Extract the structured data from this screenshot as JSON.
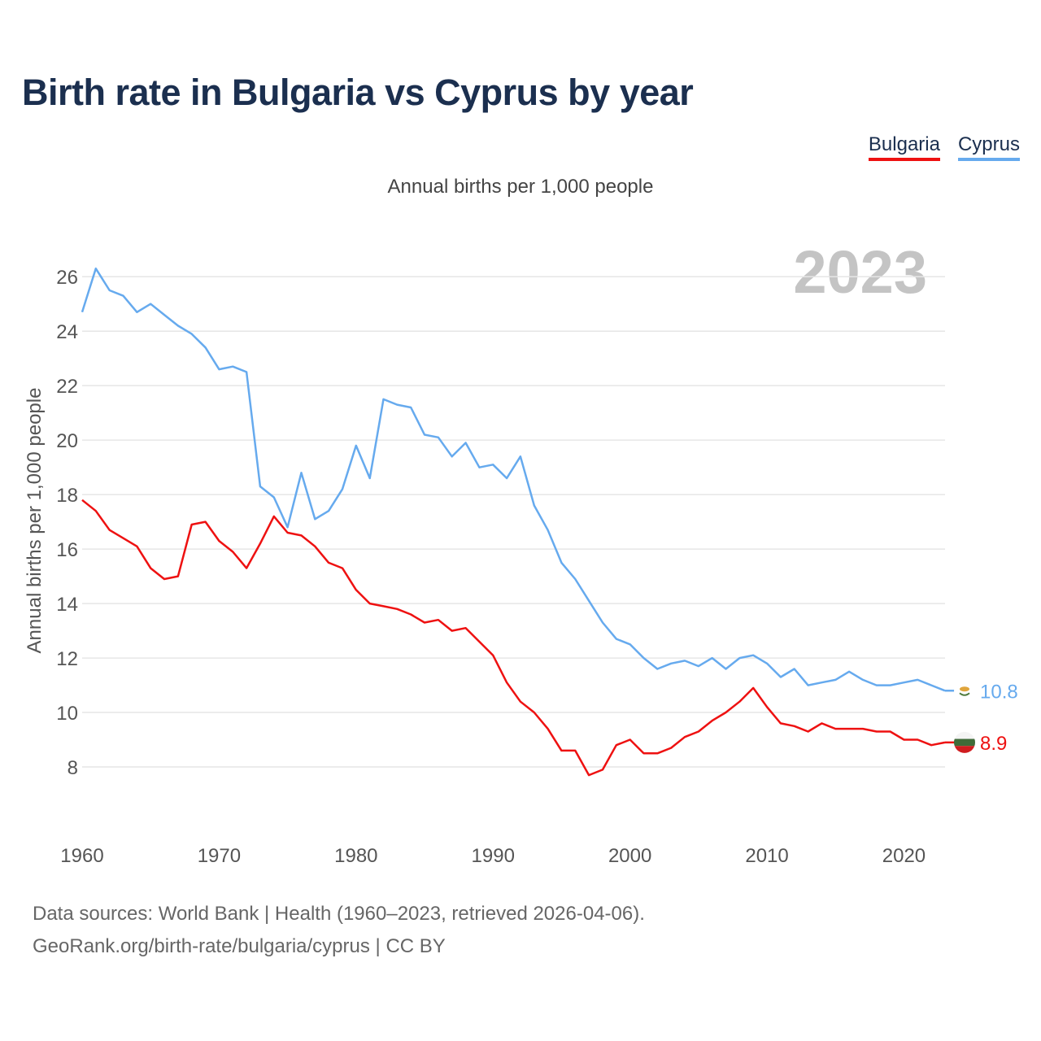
{
  "title": "Birth rate in Bulgaria vs Cyprus by year",
  "legend": [
    {
      "name": "Bulgaria",
      "color": "#ee1111"
    },
    {
      "name": "Cyprus",
      "color": "#66aaee"
    }
  ],
  "subtitle": "Annual births per 1,000 people",
  "year_watermark": "2023",
  "footer": {
    "line1": "Data sources: World Bank | Health (1960–2023, retrieved 2026-04-06).",
    "line2": "GeoRank.org/birth-rate/bulgaria/cyprus | CC BY"
  },
  "chart_data": {
    "type": "line",
    "title": "Birth rate in Bulgaria vs Cyprus by year",
    "xlabel": "",
    "ylabel": "Annual births per 1,000 people",
    "xlim": [
      1960,
      2023
    ],
    "ylim": [
      6,
      27.5
    ],
    "x_ticks": [
      1960,
      1970,
      1980,
      1990,
      2000,
      2010,
      2020
    ],
    "y_ticks": [
      8,
      10,
      12,
      14,
      16,
      18,
      20,
      22,
      24,
      26
    ],
    "grid": true,
    "legend_position": "top-right",
    "x": [
      1960,
      1961,
      1962,
      1963,
      1964,
      1965,
      1966,
      1967,
      1968,
      1969,
      1970,
      1971,
      1972,
      1973,
      1974,
      1975,
      1976,
      1977,
      1978,
      1979,
      1980,
      1981,
      1982,
      1983,
      1984,
      1985,
      1986,
      1987,
      1988,
      1989,
      1990,
      1991,
      1992,
      1993,
      1994,
      1995,
      1996,
      1997,
      1998,
      1999,
      2000,
      2001,
      2002,
      2003,
      2004,
      2005,
      2006,
      2007,
      2008,
      2009,
      2010,
      2011,
      2012,
      2013,
      2014,
      2015,
      2016,
      2017,
      2018,
      2019,
      2020,
      2021,
      2022,
      2023
    ],
    "series": [
      {
        "name": "Bulgaria",
        "color": "#ee1111",
        "end_label": "8.9",
        "flag": "bulgaria-flag",
        "values": [
          17.8,
          17.4,
          16.7,
          16.4,
          16.1,
          15.3,
          14.9,
          15.0,
          16.9,
          17.0,
          16.3,
          15.9,
          15.3,
          16.2,
          17.2,
          16.6,
          16.5,
          16.1,
          15.5,
          15.3,
          14.5,
          14.0,
          13.9,
          13.8,
          13.6,
          13.3,
          13.4,
          13.0,
          13.1,
          12.6,
          12.1,
          11.1,
          10.4,
          10.0,
          9.4,
          8.6,
          8.6,
          7.7,
          7.9,
          8.8,
          9.0,
          8.5,
          8.5,
          8.7,
          9.1,
          9.3,
          9.7,
          10.0,
          10.4,
          10.9,
          10.2,
          9.6,
          9.5,
          9.3,
          9.6,
          9.4,
          9.4,
          9.4,
          9.3,
          9.3,
          9.0,
          9.0,
          8.8,
          8.9
        ]
      },
      {
        "name": "Cyprus",
        "color": "#66aaee",
        "end_label": "10.8",
        "flag": "cyprus-flag",
        "values": [
          24.7,
          26.3,
          25.5,
          25.3,
          24.7,
          25.0,
          24.6,
          24.2,
          23.9,
          23.4,
          22.6,
          22.7,
          22.5,
          18.3,
          17.9,
          16.8,
          18.8,
          17.1,
          17.4,
          18.2,
          19.8,
          18.6,
          21.5,
          21.3,
          21.2,
          20.2,
          20.1,
          19.4,
          19.9,
          19.0,
          19.1,
          18.6,
          19.4,
          17.6,
          16.7,
          15.5,
          14.9,
          14.1,
          13.3,
          12.7,
          12.5,
          12.0,
          11.6,
          11.8,
          11.9,
          11.7,
          12.0,
          11.6,
          12.0,
          12.1,
          11.8,
          11.3,
          11.6,
          11.0,
          11.1,
          11.2,
          11.5,
          11.2,
          11.0,
          11.0,
          11.1,
          11.2,
          11.0,
          10.8
        ]
      }
    ]
  }
}
